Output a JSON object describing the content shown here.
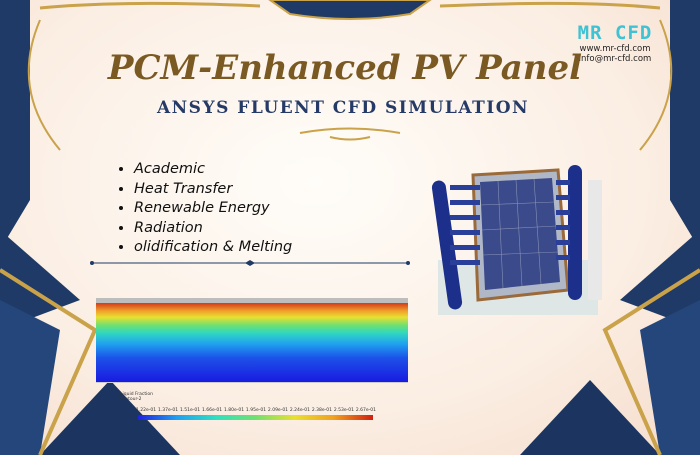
{
  "title": "PCM-Enhanced PV Panel",
  "subtitle": "ANSYS FLUENT CFD SIMULATION",
  "topics": [
    "Academic",
    "Heat Transfer",
    "Renewable Energy",
    " Radiation",
    "olidification & Melting"
  ],
  "logo": {
    "brand": "MR CFD",
    "website": "www.mr-cfd.com",
    "email": "info@mr-cfd.com"
  },
  "legend": {
    "title": "Liquid Fraction",
    "subtitle": "contour-2",
    "ticks": [
      "1.22e-01",
      "1.37e-01",
      "1.51e-01",
      "1.66e-01",
      "1.80e-01",
      "1.95e-01",
      "2.09e-01",
      "2.24e-01",
      "2.38e-01",
      "2.53e-01",
      "2.67e-01"
    ]
  },
  "colors": {
    "navy": "#1f3a66",
    "gold": "#c9a24a",
    "title": "#7a5a22"
  }
}
